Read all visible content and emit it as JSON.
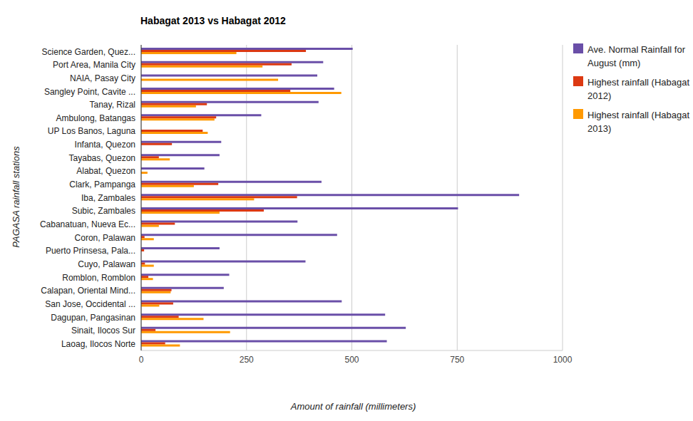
{
  "chart_data": {
    "type": "bar",
    "orientation": "horizontal",
    "title": "Habagat 2013 vs Habagat 2012",
    "x_label": "Amount of rainfall (millimeters)",
    "y_label": "PAGASA rainfall stations",
    "categories": [
      "Science Garden, Quez...",
      "Port Area, Manila City",
      "NAIA, Pasay City",
      "Sangley Point, Cavite ...",
      "Tanay, Rizal",
      "Ambulong, Batangas",
      "UP Los Banos, Laguna",
      "Infanta, Quezon",
      "Tayabas, Quezon",
      "Alabat, Quezon",
      "Clark, Pampanga",
      "Iba, Zambales",
      "Subic, Zambales",
      "Cabanatuan, Nueva Ec...",
      "Coron, Palawan",
      "Puerto Prinsesa, Pala...",
      "Cuyo, Palawan",
      "Romblon, Romblon",
      "Calapan, Oriental Mind...",
      "San Jose, Occidental ...",
      "Dagupan, Pangasinan",
      "Sinait, Ilocos Sur",
      "Laoag, Ilocos Norte"
    ],
    "series": [
      {
        "name": "Ave. Normal Rainfall for August (mm)",
        "color": "#6a4fa8",
        "values": [
          502,
          432,
          418,
          458,
          421,
          285,
          null,
          190,
          186,
          150,
          428,
          897,
          752,
          371,
          465,
          186,
          390,
          209,
          196,
          476,
          579,
          628,
          583
        ]
      },
      {
        "name": "Highest rainfall (Habagat 2012)",
        "color": "#dc3912",
        "values": [
          391,
          357,
          null,
          354,
          156,
          178,
          146,
          73,
          42,
          null,
          183,
          370,
          291,
          80,
          8,
          7,
          9,
          17,
          72,
          76,
          89,
          34,
          57
        ]
      },
      {
        "name": "Highest rainfall (Habagat 2013)",
        "color": "#ff9900",
        "values": [
          226,
          288,
          325,
          475,
          130,
          174,
          158,
          null,
          68,
          15,
          125,
          268,
          186,
          42,
          30,
          null,
          30,
          28,
          70,
          43,
          148,
          211,
          92
        ]
      }
    ],
    "xlim": [
      0,
      1000
    ],
    "xticks": [
      0,
      250,
      500,
      750,
      1000
    ],
    "grid": true,
    "legend": "right"
  }
}
